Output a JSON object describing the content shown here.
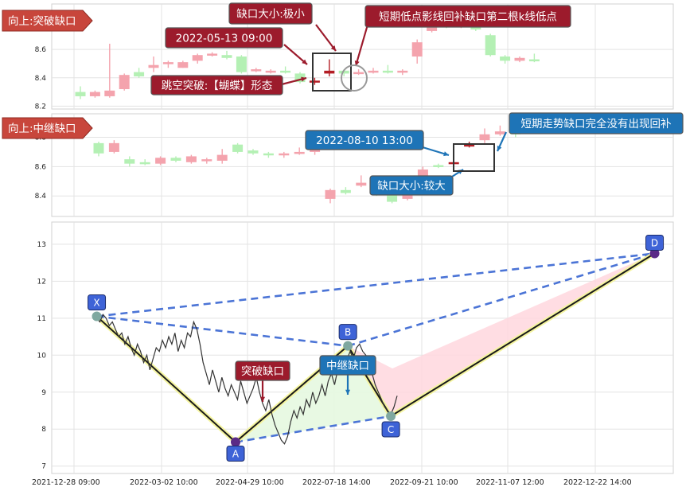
{
  "colors": {
    "up": "#f4a3ad",
    "down": "#b4f0b4",
    "highlight_up": "#b31d24",
    "red_label_bg": "#9c1b2c",
    "blue_label_bg": "#1e74b7",
    "dashed_line": "#4b74d6",
    "zigzag": "#1a1a1a",
    "zigzag_glow": "#f5f5a0",
    "pink_fill": "#ffd7de",
    "green_fill": "#e6f8e0",
    "price_line": "#333333",
    "node": "#7fa8a0",
    "point_badge": "#3e63d7"
  },
  "chart_data": [
    {
      "type": "candlestick",
      "panel": "top",
      "title": "向上:突破缺口",
      "ylim": [
        8.18,
        8.92
      ],
      "yticks": [
        "8.2",
        "8.4",
        "8.6"
      ],
      "candles": [
        {
          "o": 8.3,
          "c": 8.27,
          "h": 8.34,
          "l": 8.25
        },
        {
          "o": 8.27,
          "c": 8.3,
          "h": 8.31,
          "l": 8.26
        },
        {
          "o": 8.27,
          "c": 8.31,
          "h": 8.64,
          "l": 8.26
        },
        {
          "o": 8.32,
          "c": 8.42,
          "h": 8.43,
          "l": 8.31
        },
        {
          "o": 8.44,
          "c": 8.41,
          "h": 8.47,
          "l": 8.4
        },
        {
          "o": 8.47,
          "c": 8.49,
          "h": 8.55,
          "l": 8.44
        },
        {
          "o": 8.5,
          "c": 8.51,
          "h": 8.52,
          "l": 8.47
        },
        {
          "o": 8.47,
          "c": 8.51,
          "h": 8.52,
          "l": 8.47
        },
        {
          "o": 8.52,
          "c": 8.56,
          "h": 8.57,
          "l": 8.5
        },
        {
          "o": 8.56,
          "c": 8.57,
          "h": 8.58,
          "l": 8.55
        },
        {
          "o": 8.56,
          "c": 8.54,
          "h": 8.59,
          "l": 8.53
        },
        {
          "o": 8.55,
          "c": 8.44,
          "h": 8.56,
          "l": 8.43
        },
        {
          "o": 8.45,
          "c": 8.46,
          "h": 8.47,
          "l": 8.44
        },
        {
          "o": 8.44,
          "c": 8.45,
          "h": 8.46,
          "l": 8.43
        },
        {
          "o": 8.45,
          "c": 8.44,
          "h": 8.48,
          "l": 8.43
        },
        {
          "o": 8.43,
          "c": 8.37,
          "h": 8.44,
          "l": 8.36
        },
        {
          "o": 8.37,
          "c": 8.38,
          "h": 8.4,
          "l": 8.35,
          "hl": true
        },
        {
          "o": 8.43,
          "c": 8.45,
          "h": 8.53,
          "l": 8.41,
          "hl": true
        },
        {
          "o": 8.45,
          "c": 8.43,
          "h": 8.46,
          "l": 8.41
        },
        {
          "o": 8.43,
          "c": 8.44,
          "h": 8.46,
          "l": 8.42
        },
        {
          "o": 8.44,
          "c": 8.45,
          "h": 8.47,
          "l": 8.43
        },
        {
          "o": 8.45,
          "c": 8.44,
          "h": 8.49,
          "l": 8.43
        },
        {
          "o": 8.44,
          "c": 8.45,
          "h": 8.46,
          "l": 8.42
        },
        {
          "o": 8.55,
          "c": 8.65,
          "h": 8.67,
          "l": 8.5
        },
        {
          "o": 8.73,
          "c": 8.8,
          "h": 8.86,
          "l": 8.72
        },
        {
          "o": 8.78,
          "c": 8.76,
          "h": 8.82,
          "l": 8.75
        },
        {
          "o": 8.76,
          "c": 8.77,
          "h": 8.78,
          "l": 8.75
        },
        {
          "o": 8.78,
          "c": 8.74,
          "h": 8.79,
          "l": 8.73
        },
        {
          "o": 8.7,
          "c": 8.56,
          "h": 8.71,
          "l": 8.55
        },
        {
          "o": 8.55,
          "c": 8.52,
          "h": 8.56,
          "l": 8.5
        },
        {
          "o": 8.52,
          "c": 8.54,
          "h": 8.55,
          "l": 8.51
        },
        {
          "o": 8.53,
          "c": 8.52,
          "h": 8.57,
          "l": 8.51
        }
      ],
      "annotations": [
        "缺口大小:极小",
        "短期低点影线回补缺口第二根k线低点",
        "2022-05-13 09:00",
        "跳空突破:【蝴蝶】形态"
      ]
    },
    {
      "type": "candlestick",
      "panel": "middle",
      "title": "向上:中继缺口",
      "ylim": [
        8.26,
        8.96
      ],
      "yticks": [
        "8.4",
        "8.6",
        "8.8"
      ],
      "candles": [
        {
          "o": 8.76,
          "c": 8.69,
          "h": 8.77,
          "l": 8.67
        },
        {
          "o": 8.7,
          "c": 8.76,
          "h": 8.78,
          "l": 8.69
        },
        {
          "o": 8.65,
          "c": 8.62,
          "h": 8.67,
          "l": 8.6
        },
        {
          "o": 8.63,
          "c": 8.62,
          "h": 8.65,
          "l": 8.61
        },
        {
          "o": 8.62,
          "c": 8.66,
          "h": 8.67,
          "l": 8.61
        },
        {
          "o": 8.66,
          "c": 8.64,
          "h": 8.67,
          "l": 8.63
        },
        {
          "o": 8.63,
          "c": 8.67,
          "h": 8.68,
          "l": 8.62
        },
        {
          "o": 8.64,
          "c": 8.65,
          "h": 8.66,
          "l": 8.62
        },
        {
          "o": 8.64,
          "c": 8.68,
          "h": 8.72,
          "l": 8.62
        },
        {
          "o": 8.75,
          "c": 8.7,
          "h": 8.76,
          "l": 8.69
        },
        {
          "o": 8.71,
          "c": 8.69,
          "h": 8.72,
          "l": 8.68
        },
        {
          "o": 8.69,
          "c": 8.68,
          "h": 8.7,
          "l": 8.66
        },
        {
          "o": 8.68,
          "c": 8.69,
          "h": 8.7,
          "l": 8.66
        },
        {
          "o": 8.69,
          "c": 8.7,
          "h": 8.73,
          "l": 8.68
        },
        {
          "o": 8.7,
          "c": 8.72,
          "h": 8.73,
          "l": 8.68
        },
        {
          "o": 8.38,
          "c": 8.44,
          "h": 8.45,
          "l": 8.35
        },
        {
          "o": 8.44,
          "c": 8.42,
          "h": 8.46,
          "l": 8.41
        },
        {
          "o": 8.47,
          "c": 8.49,
          "h": 8.54,
          "l": 8.46
        },
        {
          "o": 8.52,
          "c": 8.41,
          "h": 8.53,
          "l": 8.4
        },
        {
          "o": 8.43,
          "c": 8.36,
          "h": 8.45,
          "l": 8.35
        },
        {
          "o": 8.38,
          "c": 8.43,
          "h": 8.44,
          "l": 8.37
        },
        {
          "o": 8.52,
          "c": 8.58,
          "h": 8.6,
          "l": 8.52
        },
        {
          "o": 8.61,
          "c": 8.6,
          "h": 8.62,
          "l": 8.59
        },
        {
          "o": 8.62,
          "c": 8.63,
          "h": 8.67,
          "l": 8.59,
          "hl": true
        },
        {
          "o": 8.74,
          "c": 8.75,
          "h": 8.77,
          "l": 8.73,
          "hl": true
        },
        {
          "o": 8.78,
          "c": 8.82,
          "h": 8.86,
          "l": 8.76
        },
        {
          "o": 8.82,
          "c": 8.84,
          "h": 8.88,
          "l": 8.81
        },
        {
          "o": 8.84,
          "c": 8.82,
          "h": 8.87,
          "l": 8.8
        }
      ],
      "annotations": [
        "2022-08-10 13:00",
        "短期走势缺口完全没有出现回补",
        "缺口大小:较大"
      ]
    },
    {
      "type": "line",
      "panel": "bottom",
      "ylim": [
        6.8,
        13.6
      ],
      "yticks": [
        "7",
        "8",
        "9",
        "10",
        "11",
        "12",
        "13"
      ],
      "xticks": [
        "2021-12-28 09:00",
        "2022-03-02 10:00",
        "2022-04-29 10:00",
        "2022-07-18 14:00",
        "2022-09-21 10:00",
        "2022-11-07 12:00",
        "2022-12-22 14:00"
      ],
      "x_range": [
        "2021-12-28",
        "2023-04-13"
      ],
      "pattern_points": [
        {
          "name": "X",
          "date": "2022-01-15",
          "y": 11.05
        },
        {
          "name": "A",
          "date": "2022-05-05",
          "y": 7.65
        },
        {
          "name": "B",
          "date": "2022-08-02",
          "y": 10.25
        },
        {
          "name": "C",
          "date": "2022-09-05",
          "y": 8.35
        },
        {
          "name": "D",
          "date": "2023-04-02",
          "y": 12.75
        }
      ],
      "series": [
        {
          "values": [
            11.0,
            10.9,
            11.1,
            11.0,
            10.8,
            10.9,
            10.7,
            10.5,
            10.6,
            10.3,
            10.5,
            10.2,
            10.0,
            10.3,
            10.1,
            9.8,
            10.0,
            9.6,
            9.9,
            10.2,
            10.1,
            10.4,
            10.2,
            10.5,
            10.3,
            10.6,
            10.1,
            10.4,
            10.2,
            10.6,
            10.5,
            10.9,
            10.7,
            10.3,
            9.8,
            9.5,
            9.2,
            9.6,
            9.3,
            9.0,
            9.4,
            9.1,
            8.9,
            9.2,
            9.0,
            8.8,
            9.3,
            9.0,
            8.7,
            8.9,
            9.1,
            9.4,
            9.0,
            8.7,
            8.5,
            8.8,
            8.4,
            8.1,
            7.9,
            7.7,
            7.6,
            7.8,
            8.2,
            8.5,
            8.3,
            8.6,
            8.4,
            8.8,
            8.6,
            9.0,
            8.7,
            8.9,
            9.2,
            8.9,
            9.3,
            9.5,
            9.2,
            9.6,
            9.8,
            9.5,
            9.9,
            10.1,
            9.9,
            10.2,
            10.3,
            10.1,
            10.0,
            9.8,
            9.5,
            9.2,
            9.0,
            8.8,
            8.6,
            8.5,
            8.4,
            8.6,
            8.9
          ]
        }
      ],
      "annotations": [
        "突破缺口",
        "中继缺口"
      ]
    }
  ]
}
